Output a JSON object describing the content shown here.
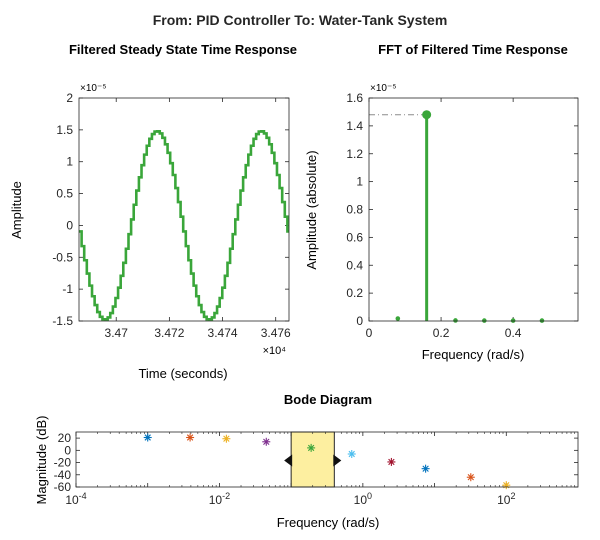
{
  "figure": {
    "suptitle": "From: PID Controller  To: Water-Tank System"
  },
  "chart_data": [
    {
      "type": "line",
      "title": "Filtered Steady State Time Response",
      "xlabel": "Time (seconds)",
      "ylabel": "Amplitude",
      "x_exponent_label": "×10⁴",
      "y_exponent_label": "×10⁻⁵",
      "xlim": [
        3.4686,
        3.4765
      ],
      "ylim": [
        -1.5,
        2
      ],
      "x_ticks": [
        3.47,
        3.472,
        3.474,
        3.476
      ],
      "y_ticks": [
        -1.5,
        -1,
        -0.5,
        0,
        0.5,
        1,
        1.5,
        2
      ],
      "signal": {
        "amplitude": 1.48,
        "period": 3.92,
        "peak_x": 3.4715,
        "stairs_per_period": 40
      },
      "series_color": "#3aa63a"
    },
    {
      "type": "stem",
      "title": "FFT of Filtered Time Response",
      "xlabel": "Frequency (rad/s)",
      "ylabel": "Amplitude (absolute)",
      "y_exponent_label": "×10⁻⁵",
      "xlim": [
        0,
        0.58
      ],
      "ylim": [
        0,
        1.6
      ],
      "x_ticks": [
        0,
        0.2,
        0.4
      ],
      "y_ticks": [
        0,
        0.2,
        0.4,
        0.6,
        0.8,
        1,
        1.2,
        1.4,
        1.6
      ],
      "x": [
        0.08,
        0.16,
        0.24,
        0.32,
        0.4,
        0.48
      ],
      "y": [
        0.018,
        1.48,
        0.004,
        0.003,
        0.003,
        0.003
      ],
      "peak": {
        "x": 0.16,
        "y": 1.48
      },
      "series_color": "#3aa63a"
    },
    {
      "type": "scatter",
      "title": "Bode Diagram",
      "xlabel": "Frequency (rad/s)",
      "ylabel": "Magnitude (dB)",
      "xscale": "log",
      "xlim": [
        0.0001,
        1000
      ],
      "ylim": [
        -60,
        30
      ],
      "x_ticks": [
        {
          "value": 0.0001,
          "base": "10",
          "exp": "-4"
        },
        {
          "value": 0.01,
          "base": "10",
          "exp": "-2"
        },
        {
          "value": 1,
          "base": "10",
          "exp": "0"
        },
        {
          "value": 100,
          "base": "10",
          "exp": "2"
        }
      ],
      "y_ticks": [
        20,
        0,
        -20,
        -40,
        -60
      ],
      "points": [
        {
          "x": 0.001,
          "y": 21,
          "color": "#0072bd"
        },
        {
          "x": 0.0039,
          "y": 21,
          "color": "#d95319"
        },
        {
          "x": 0.0125,
          "y": 19,
          "color": "#edb120"
        },
        {
          "x": 0.045,
          "y": 14,
          "color": "#7e2f8e"
        },
        {
          "x": 0.19,
          "y": 4,
          "color": "#3aa63a"
        },
        {
          "x": 0.7,
          "y": -6,
          "color": "#4dbeee"
        },
        {
          "x": 2.5,
          "y": -19,
          "color": "#a2142f"
        },
        {
          "x": 7.5,
          "y": -30,
          "color": "#0072bd"
        },
        {
          "x": 32,
          "y": -44,
          "color": "#d95319"
        },
        {
          "x": 100,
          "y": -57,
          "color": "#edb120"
        }
      ],
      "highlight_band": {
        "x_from": 0.1,
        "x_to": 0.4,
        "color": "#fdefa0"
      }
    }
  ]
}
